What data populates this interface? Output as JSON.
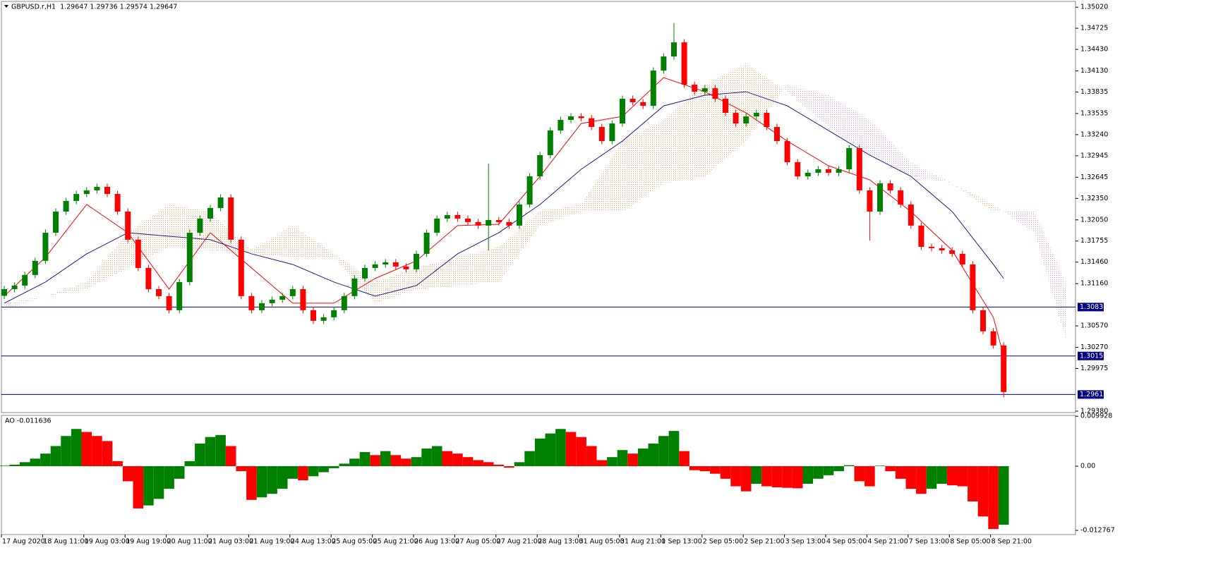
{
  "chart_data": [
    {
      "type": "candlestick",
      "header": "GBPUSD.r,H1  1.29647 1.29736 1.29574 1.29647",
      "ylim": [
        1.2936,
        1.351
      ],
      "yticks": [
        {
          "value": 1.3502,
          "label": "1.35020"
        },
        1.34725,
        {
          "value": 1.3443,
          "label": "1.34430"
        },
        {
          "value": 1.3413,
          "label": "1.34130"
        },
        1.33835,
        1.33535,
        {
          "value": 1.3324,
          "label": "1.33240"
        },
        1.32945,
        1.32645,
        {
          "value": 1.3235,
          "label": "1.32350"
        },
        {
          "value": 1.3205,
          "label": "1.32050"
        },
        1.31755,
        {
          "value": 1.3146,
          "label": "1.31460"
        },
        {
          "value": 1.3116,
          "label": "1.31160"
        },
        {
          "value": 1.3057,
          "label": "1.30570"
        },
        {
          "value": 1.3027,
          "label": "1.30270"
        },
        1.29975,
        {
          "value": 1.2938,
          "label": "1.29380"
        }
      ],
      "levels": [
        1.30833,
        {
          "value": 1.3015,
          "label": "1.30150"
        },
        1.29612
      ],
      "level_color": "#000080",
      "up_color": "#008000",
      "down_color": "#ff0000",
      "candles": [
        [
          1.3099,
          1.31128,
          1.30945,
          1.31083
        ],
        [
          1.31083,
          1.31178,
          1.31038,
          1.31133
        ],
        [
          1.31133,
          1.31326,
          1.31088,
          1.31281
        ],
        [
          1.31281,
          1.31523,
          1.31236,
          1.31478
        ],
        [
          1.31478,
          1.31916,
          1.31433,
          1.31871
        ],
        [
          1.31871,
          1.32211,
          1.31826,
          1.32166
        ],
        [
          1.32166,
          1.32359,
          1.32121,
          1.32314
        ],
        [
          1.32314,
          1.32457,
          1.32269,
          1.32412
        ],
        [
          1.32412,
          1.32507,
          1.32367,
          1.32462
        ],
        [
          1.32462,
          1.32556,
          1.32417,
          1.32511
        ],
        [
          1.32511,
          1.32556,
          1.32367,
          1.32412
        ],
        [
          1.32412,
          1.32457,
          1.32121,
          1.32166
        ],
        [
          1.32166,
          1.32211,
          1.31728,
          1.31773
        ],
        [
          1.31773,
          1.31818,
          1.31334,
          1.31379
        ],
        [
          1.31379,
          1.31424,
          1.31038,
          1.31083
        ],
        [
          1.31083,
          1.31128,
          1.30941,
          1.30986
        ],
        [
          1.30986,
          1.31031,
          1.30744,
          1.30789
        ],
        [
          1.30789,
          1.31227,
          1.30744,
          1.31182
        ],
        [
          1.31182,
          1.31916,
          1.31137,
          1.31871
        ],
        [
          1.31871,
          1.32113,
          1.31826,
          1.32068
        ],
        [
          1.32068,
          1.32261,
          1.32023,
          1.32216
        ],
        [
          1.32216,
          1.32408,
          1.32171,
          1.32363
        ],
        [
          1.32363,
          1.32408,
          1.31728,
          1.31773
        ],
        [
          1.31773,
          1.31818,
          1.30941,
          1.30986
        ],
        [
          1.30986,
          1.31031,
          1.30744,
          1.30789
        ],
        [
          1.30789,
          1.30932,
          1.30744,
          1.30887
        ],
        [
          1.30887,
          1.30981,
          1.30842,
          1.30936
        ],
        [
          1.30936,
          1.31031,
          1.30891,
          1.30986
        ],
        [
          1.30986,
          1.31128,
          1.30941,
          1.31083
        ],
        [
          1.31083,
          1.31128,
          1.30744,
          1.30789
        ],
        [
          1.30789,
          1.30834,
          1.30596,
          1.30641
        ],
        [
          1.30641,
          1.30735,
          1.30596,
          1.3069
        ],
        [
          1.3069,
          1.30834,
          1.30645,
          1.30789
        ],
        [
          1.30789,
          1.31031,
          1.30744,
          1.30986
        ],
        [
          1.30986,
          1.31277,
          1.30941,
          1.31232
        ],
        [
          1.31232,
          1.31424,
          1.31187,
          1.31379
        ],
        [
          1.31379,
          1.31473,
          1.31334,
          1.31428
        ],
        [
          1.31428,
          1.31503,
          1.31383,
          1.31458
        ],
        [
          1.31458,
          1.31503,
          1.31354,
          1.31399
        ],
        [
          1.31399,
          1.31444,
          1.31315,
          1.3136
        ],
        [
          1.3136,
          1.31621,
          1.31315,
          1.31576
        ],
        [
          1.31576,
          1.31916,
          1.31531,
          1.31871
        ],
        [
          1.31871,
          1.32113,
          1.31826,
          1.32068
        ],
        [
          1.32068,
          1.32162,
          1.32023,
          1.32117
        ],
        [
          1.32117,
          1.32162,
          1.32023,
          1.32068
        ],
        [
          1.32068,
          1.32113,
          1.31974,
          1.32019
        ],
        [
          1.32019,
          1.32064,
          1.31925,
          1.3197
        ],
        [
          1.3197,
          1.32835,
          1.3162,
          1.32048
        ],
        [
          1.32048,
          1.32093,
          1.31974,
          1.32019
        ],
        [
          1.32019,
          1.32064,
          1.31925,
          1.3197
        ],
        [
          1.3197,
          1.3231,
          1.31925,
          1.32265
        ],
        [
          1.32265,
          1.32703,
          1.3222,
          1.32658
        ],
        [
          1.32658,
          1.32999,
          1.32613,
          1.32954
        ],
        [
          1.32954,
          1.33343,
          1.32909,
          1.33298
        ],
        [
          1.33298,
          1.33491,
          1.33253,
          1.33446
        ],
        [
          1.33446,
          1.3354,
          1.33401,
          1.33495
        ],
        [
          1.33495,
          1.3354,
          1.33425,
          1.3347
        ],
        [
          1.3347,
          1.33515,
          1.33302,
          1.33347
        ],
        [
          1.33347,
          1.33392,
          1.33105,
          1.3315
        ],
        [
          1.3315,
          1.33441,
          1.33105,
          1.33396
        ],
        [
          1.33396,
          1.33786,
          1.33351,
          1.33741
        ],
        [
          1.33741,
          1.33786,
          1.33647,
          1.33692
        ],
        [
          1.33692,
          1.33737,
          1.33597,
          1.33642
        ],
        [
          1.33642,
          1.34179,
          1.33597,
          1.34134
        ],
        [
          1.34134,
          1.34376,
          1.34089,
          1.34331
        ],
        [
          1.34331,
          1.348,
          1.34286,
          1.34528
        ],
        [
          1.34528,
          1.34573,
          1.33893,
          1.33938
        ],
        [
          1.33938,
          1.33983,
          1.33794,
          1.33839
        ],
        [
          1.33839,
          1.33933,
          1.33794,
          1.33888
        ],
        [
          1.33888,
          1.33933,
          1.33696,
          1.33741
        ],
        [
          1.33741,
          1.33786,
          1.33499,
          1.33544
        ],
        [
          1.33544,
          1.33589,
          1.33351,
          1.33396
        ],
        [
          1.33396,
          1.3354,
          1.33351,
          1.33495
        ],
        [
          1.33495,
          1.33589,
          1.3345,
          1.33544
        ],
        [
          1.33544,
          1.33589,
          1.33302,
          1.33347
        ],
        [
          1.33347,
          1.33392,
          1.33105,
          1.3315
        ],
        [
          1.3315,
          1.33195,
          1.3281,
          1.32855
        ],
        [
          1.32855,
          1.329,
          1.32613,
          1.32658
        ],
        [
          1.32658,
          1.32753,
          1.32613,
          1.32708
        ],
        [
          1.32708,
          1.32802,
          1.32663,
          1.32757
        ],
        [
          1.32757,
          1.32802,
          1.32663,
          1.32708
        ],
        [
          1.32708,
          1.32802,
          1.32663,
          1.32757
        ],
        [
          1.32757,
          1.33097,
          1.32712,
          1.33052
        ],
        [
          1.33052,
          1.33097,
          1.32417,
          1.32462
        ],
        [
          1.32462,
          1.32507,
          1.3176,
          1.32166
        ],
        [
          1.32166,
          1.32605,
          1.32121,
          1.3256
        ],
        [
          1.3256,
          1.32605,
          1.32417,
          1.32462
        ],
        [
          1.32462,
          1.32507,
          1.3222,
          1.32265
        ],
        [
          1.32265,
          1.3231,
          1.31925,
          1.3197
        ],
        [
          1.3197,
          1.32015,
          1.31629,
          1.31674
        ],
        [
          1.31674,
          1.31719,
          1.3161,
          1.31655
        ],
        [
          1.31655,
          1.317,
          1.3158,
          1.31625
        ],
        [
          1.31625,
          1.3167,
          1.31531,
          1.31576
        ],
        [
          1.31576,
          1.31621,
          1.31383,
          1.31428
        ],
        [
          1.31428,
          1.31473,
          1.30744,
          1.30789
        ],
        [
          1.30789,
          1.30834,
          1.30449,
          1.30494
        ],
        [
          1.30494,
          1.30539,
          1.30252,
          1.30297
        ],
        [
          1.30297,
          1.30342,
          1.29574,
          1.29647
        ]
      ],
      "line_x": [
        0,
        4,
        8,
        12,
        16,
        20,
        24,
        28,
        32,
        36,
        40,
        44,
        48,
        52,
        56,
        60,
        64,
        68,
        72,
        76,
        80,
        84,
        88,
        92,
        96,
        97
      ],
      "lines": [
        {
          "color": "#ff0000",
          "values": [
            1.30986,
            1.31527,
            1.32265,
            1.31871,
            1.31083,
            1.31871,
            1.31379,
            1.30887,
            1.30887,
            1.31232,
            1.31478,
            1.3197,
            1.31989,
            1.32658,
            1.33396,
            1.33495,
            1.34036,
            1.33839,
            1.33544,
            1.3315,
            1.32806,
            1.32609,
            1.32166,
            1.31625,
            1.3069,
            1.30149
          ]
        },
        {
          "color": "#1a1a8c",
          "values": [
            1.30887,
            1.31182,
            1.31576,
            1.31871,
            1.31822,
            1.31773,
            1.31576,
            1.31428,
            1.31182,
            1.30986,
            1.31133,
            1.31576,
            1.31871,
            1.32265,
            1.32757,
            1.3315,
            1.33642,
            1.3379,
            1.33839,
            1.33642,
            1.33298,
            1.32954,
            1.32658,
            1.32166,
            1.31428,
            1.31232
          ]
        }
      ],
      "cloud": {
        "x": [
          0,
          4,
          8,
          12,
          16,
          20,
          24,
          28,
          32,
          36,
          40,
          44,
          48,
          52,
          56,
          60,
          64,
          68,
          72,
          76,
          80,
          84,
          88,
          92,
          96,
          100,
          103
        ],
        "span_a": [
          1.30789,
          1.30986,
          1.31182,
          1.31871,
          1.32265,
          1.32166,
          1.31625,
          1.3197,
          1.31576,
          1.31182,
          1.31379,
          1.31527,
          1.31674,
          1.32166,
          1.32265,
          1.3315,
          1.33446,
          1.33938,
          1.34233,
          1.33839,
          1.33347,
          1.32954,
          1.32658,
          1.3256,
          1.32265,
          1.31871,
          1.30395
        ],
        "span_b": [
          1.30887,
          1.30986,
          1.31083,
          1.31379,
          1.31674,
          1.31625,
          1.31576,
          1.31527,
          1.31527,
          1.30887,
          1.31083,
          1.31133,
          1.31182,
          1.3197,
          1.32166,
          1.32166,
          1.3256,
          1.32658,
          1.3315,
          1.33938,
          1.3379,
          1.33446,
          1.32855,
          1.3256,
          1.32166,
          1.32166,
          1.31182
        ],
        "up_color": "#f4a460",
        "down_color": "#d8a0d8"
      },
      "time_labels": [
        "17 Aug 2020",
        "18 Aug 11:00",
        "19 Aug 03:00",
        "19 Aug 19:00",
        "20 Aug 11:00",
        "21 Aug 03:00",
        "21 Aug 19:00",
        "24 Aug 13:00",
        "25 Aug 05:00",
        "25 Aug 21:00",
        "26 Aug 13:00",
        "27 Aug 05:00",
        "27 Aug 21:00",
        "28 Aug 13:00",
        "31 Aug 05:00",
        "31 Aug 21:00",
        "1 Sep 13:00",
        "2 Sep 05:00",
        "2 Sep 21:00",
        "3 Sep 13:00",
        "4 Sep 05:00",
        "4 Sep 21:00",
        "7 Sep 13:00",
        "8 Sep 05:00",
        "8 Sep 21:00"
      ]
    },
    {
      "type": "bar",
      "label": "AO -0.011636",
      "ylim": [
        -0.0136,
        0.0101
      ],
      "yticks": [
        0.009928,
        {
          "value": 0,
          "label": "0.00"
        },
        -0.012767
      ],
      "up_color": "#008000",
      "down_color": "#ff0000",
      "values": [
        0.0001,
        0.0003,
        0.0008,
        0.0015,
        0.0025,
        0.004,
        0.006,
        0.0074,
        0.0068,
        0.006,
        0.005,
        0.001,
        -0.003,
        -0.0084,
        -0.0078,
        -0.0065,
        -0.0045,
        -0.0025,
        0.001,
        0.0045,
        0.0058,
        0.0062,
        0.004,
        -0.001,
        -0.0067,
        -0.0062,
        -0.0055,
        -0.0045,
        -0.0025,
        -0.0028,
        -0.002,
        -0.0012,
        -0.0004,
        0.0005,
        0.0015,
        0.0028,
        0.0022,
        0.003,
        0.0022,
        0.0015,
        0.0018,
        0.0035,
        0.004,
        0.003,
        0.0025,
        0.0018,
        0.0012,
        0.0008,
        0.0003,
        -0.0003,
        0.0008,
        0.003,
        0.0055,
        0.0065,
        0.0074,
        0.0068,
        0.0058,
        0.004,
        0.0012,
        0.0018,
        0.0032,
        0.0025,
        0.0035,
        0.0045,
        0.006,
        0.007,
        0.003,
        -0.0008,
        -0.001,
        -0.0015,
        -0.0025,
        -0.004,
        -0.005,
        -0.0035,
        -0.004,
        -0.0042,
        -0.0043,
        -0.0044,
        -0.0035,
        -0.0025,
        -0.0018,
        -0.001,
        0.0002,
        -0.003,
        -0.004,
        0.0001,
        -0.001,
        -0.0025,
        -0.0045,
        -0.0055,
        -0.0045,
        -0.0035,
        -0.0038,
        -0.004,
        -0.007,
        -0.01,
        -0.0125,
        -0.011636
      ]
    }
  ]
}
